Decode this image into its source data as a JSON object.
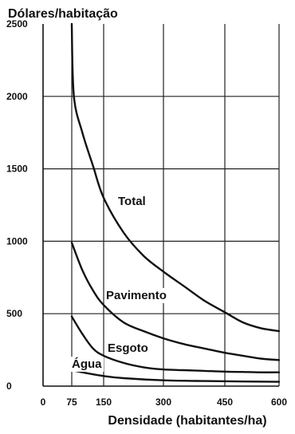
{
  "chart_data": {
    "type": "line",
    "ylabel": "Dólares/habitação",
    "xlabel": "Densidade (habitantes/ha)",
    "xlim": [
      0,
      600
    ],
    "ylim": [
      0,
      2500
    ],
    "x_ticks": [
      "0",
      "75",
      "150",
      "300",
      "450",
      "600"
    ],
    "y_ticks": [
      "0",
      "500",
      "1000",
      "1500",
      "2000",
      "2500"
    ],
    "x_tick_values": [
      0,
      75,
      150,
      300,
      450,
      600
    ],
    "y_tick_values": [
      0,
      500,
      1000,
      1500,
      2000,
      2500
    ],
    "grid": true,
    "series": [
      {
        "name": "Total",
        "x": [
          75,
          80,
          100,
          125,
          150,
          200,
          250,
          300,
          350,
          400,
          450,
          500,
          550,
          600
        ],
        "y": [
          2500,
          2000,
          1750,
          1520,
          1300,
          1060,
          900,
          790,
          690,
          590,
          510,
          440,
          400,
          380
        ]
      },
      {
        "name": "Pavimento",
        "x": [
          75,
          100,
          125,
          150,
          200,
          250,
          300,
          350,
          400,
          450,
          500,
          550,
          600
        ],
        "y": [
          990,
          800,
          660,
          560,
          440,
          380,
          330,
          290,
          260,
          230,
          210,
          190,
          180
        ]
      },
      {
        "name": "Esgoto",
        "x": [
          75,
          100,
          125,
          150,
          200,
          250,
          300,
          350,
          400,
          450,
          500,
          550,
          600
        ],
        "y": [
          480,
          360,
          260,
          210,
          160,
          130,
          115,
          110,
          105,
          100,
          98,
          95,
          95
        ]
      },
      {
        "name": "Água",
        "x": [
          75,
          100,
          150,
          200,
          300,
          400,
          500,
          600
        ],
        "y": [
          110,
          95,
          70,
          55,
          40,
          35,
          32,
          30
        ]
      }
    ]
  }
}
